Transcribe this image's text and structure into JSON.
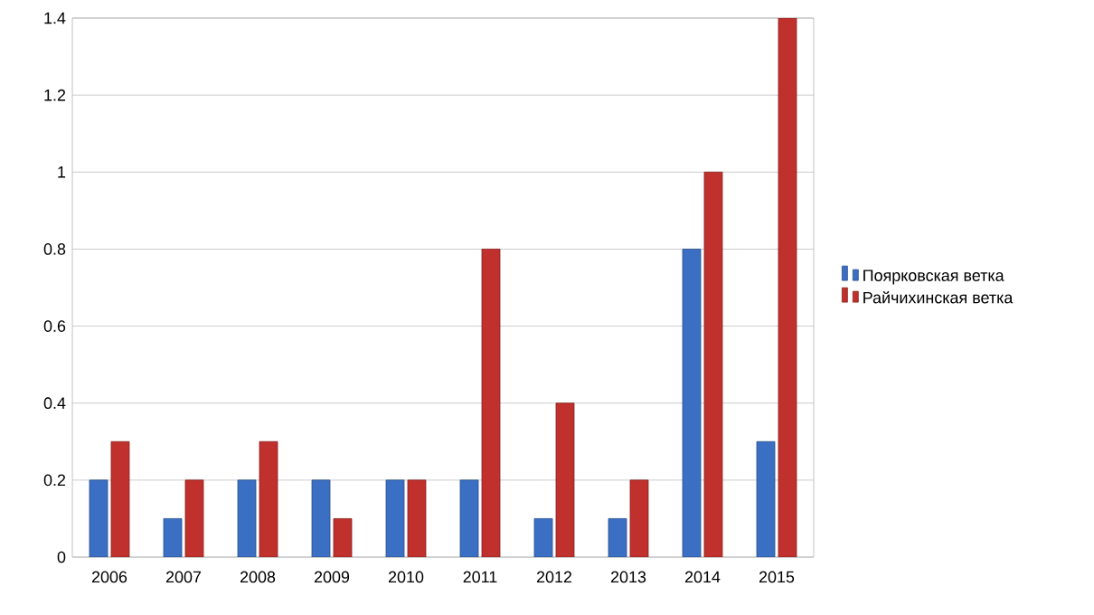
{
  "chart_data": {
    "type": "bar",
    "categories": [
      "2006",
      "2007",
      "2008",
      "2009",
      "2010",
      "2011",
      "2012",
      "2013",
      "2014",
      "2015"
    ],
    "series": [
      {
        "name": "Поярковская ветка",
        "color": "#3a6fc4",
        "values": [
          0.2,
          0.1,
          0.2,
          0.2,
          0.2,
          0.2,
          0.1,
          0.1,
          0.8,
          0.3
        ]
      },
      {
        "name": "Райчихинская ветка",
        "color": "#c0302c",
        "values": [
          0.3,
          0.2,
          0.3,
          0.1,
          0.2,
          0.8,
          0.4,
          0.2,
          1.0,
          1.4
        ]
      }
    ],
    "ylim": [
      0,
      1.4
    ],
    "yticks": [
      0,
      0.2,
      0.4,
      0.6,
      0.8,
      1,
      1.2,
      1.4
    ],
    "grid": "y",
    "legend": "right"
  }
}
